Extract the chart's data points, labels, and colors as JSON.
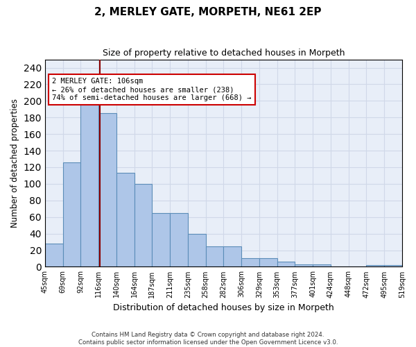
{
  "title1": "2, MERLEY GATE, MORPETH, NE61 2EP",
  "title2": "Size of property relative to detached houses in Morpeth",
  "xlabel": "Distribution of detached houses by size in Morpeth",
  "ylabel": "Number of detached properties",
  "bin_labels": [
    "45sqm",
    "69sqm",
    "92sqm",
    "116sqm",
    "140sqm",
    "164sqm",
    "187sqm",
    "211sqm",
    "235sqm",
    "258sqm",
    "282sqm",
    "306sqm",
    "329sqm",
    "353sqm",
    "377sqm",
    "401sqm",
    "424sqm",
    "448sqm",
    "472sqm",
    "495sqm",
    "519sqm"
  ],
  "values": [
    28,
    126,
    197,
    185,
    113,
    100,
    65,
    65,
    40,
    25,
    25,
    10,
    10,
    6,
    3,
    3,
    0,
    0,
    2,
    2
  ],
  "bar_color": "#aec6e8",
  "bar_edge_color": "#5b8db8",
  "vline_color": "#8b0000",
  "annotation_line1": "2 MERLEY GATE: 106sqm",
  "annotation_line2": "← 26% of detached houses are smaller (238)",
  "annotation_line3": "74% of semi-detached houses are larger (668) →",
  "annotation_box_color": "#ffffff",
  "annotation_box_edge": "#cc0000",
  "ylim": [
    0,
    250
  ],
  "yticks": [
    0,
    20,
    40,
    60,
    80,
    100,
    120,
    140,
    160,
    180,
    200,
    220,
    240
  ],
  "grid_color": "#d0d8e8",
  "background_color": "#e8eef8",
  "footnote1": "Contains HM Land Registry data © Crown copyright and database right 2024.",
  "footnote2": "Contains public sector information licensed under the Open Government Licence v3.0."
}
